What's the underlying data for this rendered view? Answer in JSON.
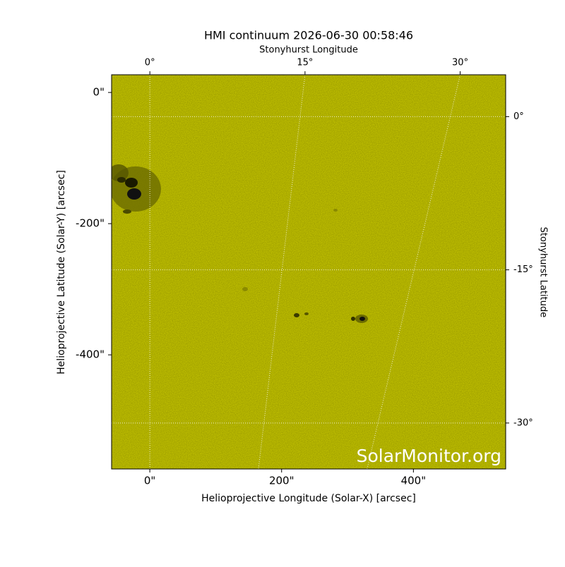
{
  "chart_data": {
    "type": "image",
    "title": "HMI continuum 2026-06-30 00:58:46",
    "xlabel": "Helioprojective Longitude (Solar-X) [arcsec]",
    "ylabel": "Helioprojective Latitude (Solar-Y) [arcsec]",
    "x2label": "Stonyhurst Longitude",
    "y2label": "Stonyhurst Latitude",
    "watermark": "SolarMonitor.org",
    "color": "#cccc00",
    "xlim": [
      -58,
      540
    ],
    "ylim": [
      -574,
      27
    ],
    "xticks": [
      {
        "value": 0,
        "label": "0\""
      },
      {
        "value": 200,
        "label": "200\""
      },
      {
        "value": 400,
        "label": "400\""
      }
    ],
    "yticks": [
      {
        "value": 0,
        "label": "0\""
      },
      {
        "value": -200,
        "label": "-200\""
      },
      {
        "value": -400,
        "label": "-400\""
      }
    ],
    "x2lim": [
      -3.7,
      34.4
    ],
    "x2ticks": [
      {
        "value": 0,
        "label": "0°"
      },
      {
        "value": 15,
        "label": "15°"
      },
      {
        "value": 30,
        "label": "30°"
      }
    ],
    "y2lim": [
      4.1,
      -34.5
    ],
    "y2ticks": [
      {
        "value": 0,
        "label": "0°"
      },
      {
        "value": -15,
        "label": "-15°"
      },
      {
        "value": -30,
        "label": "-30°"
      }
    ],
    "grid": true
  }
}
